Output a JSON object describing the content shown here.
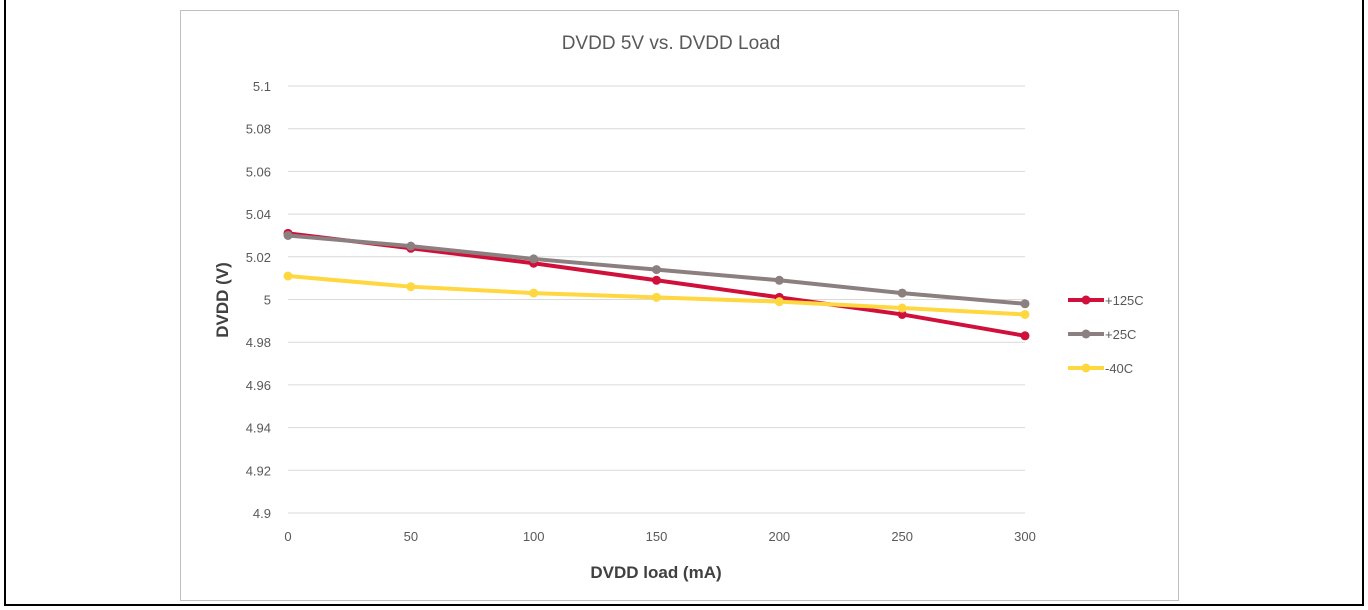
{
  "chart_data": {
    "type": "line",
    "title": "DVDD 5V vs. DVDD Load",
    "xlabel": "DVDD load (mA)",
    "ylabel": "DVDD (V)",
    "x": [
      0,
      50,
      100,
      150,
      200,
      250,
      300
    ],
    "x_tick_labels": [
      "0",
      "50",
      "100",
      "150",
      "200",
      "250",
      "300"
    ],
    "ylim": [
      4.9,
      5.1
    ],
    "y_tick_labels": [
      "4.9",
      "4.92",
      "4.94",
      "4.96",
      "4.98",
      "5",
      "5.02",
      "5.04",
      "5.06",
      "5.08",
      "5.1"
    ],
    "grid": true,
    "legend_position": "right",
    "series": [
      {
        "name": "+125C",
        "color": "#d0103a",
        "values": [
          5.031,
          5.024,
          5.017,
          5.009,
          5.001,
          4.993,
          4.983
        ]
      },
      {
        "name": "+25C",
        "color": "#8c7f80",
        "values": [
          5.03,
          5.025,
          5.019,
          5.014,
          5.009,
          5.003,
          4.998
        ]
      },
      {
        "name": "-40C",
        "color": "#ffd740",
        "values": [
          5.011,
          5.006,
          5.003,
          5.001,
          4.999,
          4.996,
          4.993
        ]
      }
    ]
  }
}
